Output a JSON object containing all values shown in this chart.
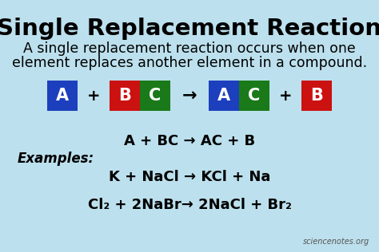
{
  "title": "Single Replacement Reaction",
  "subtitle_line1": "A single replacement reaction occurs when one",
  "subtitle_line2": "element replaces another element in a compound.",
  "bg_color": "#bce0ed",
  "title_color": "#000000",
  "title_fontsize": 21,
  "subtitle_fontsize": 12.5,
  "box_A_color": "#1c3fbd",
  "box_B_color": "#cc1111",
  "box_C_color": "#1a7a1a",
  "equation_text": "A + BC → AC + B",
  "examples_label": "Examples:",
  "example1": "K + NaCl → KCl + Na",
  "example2": "Cl₂ + 2NaBr→ 2NaCl + Br₂",
  "watermark": "sciencenotes.org"
}
